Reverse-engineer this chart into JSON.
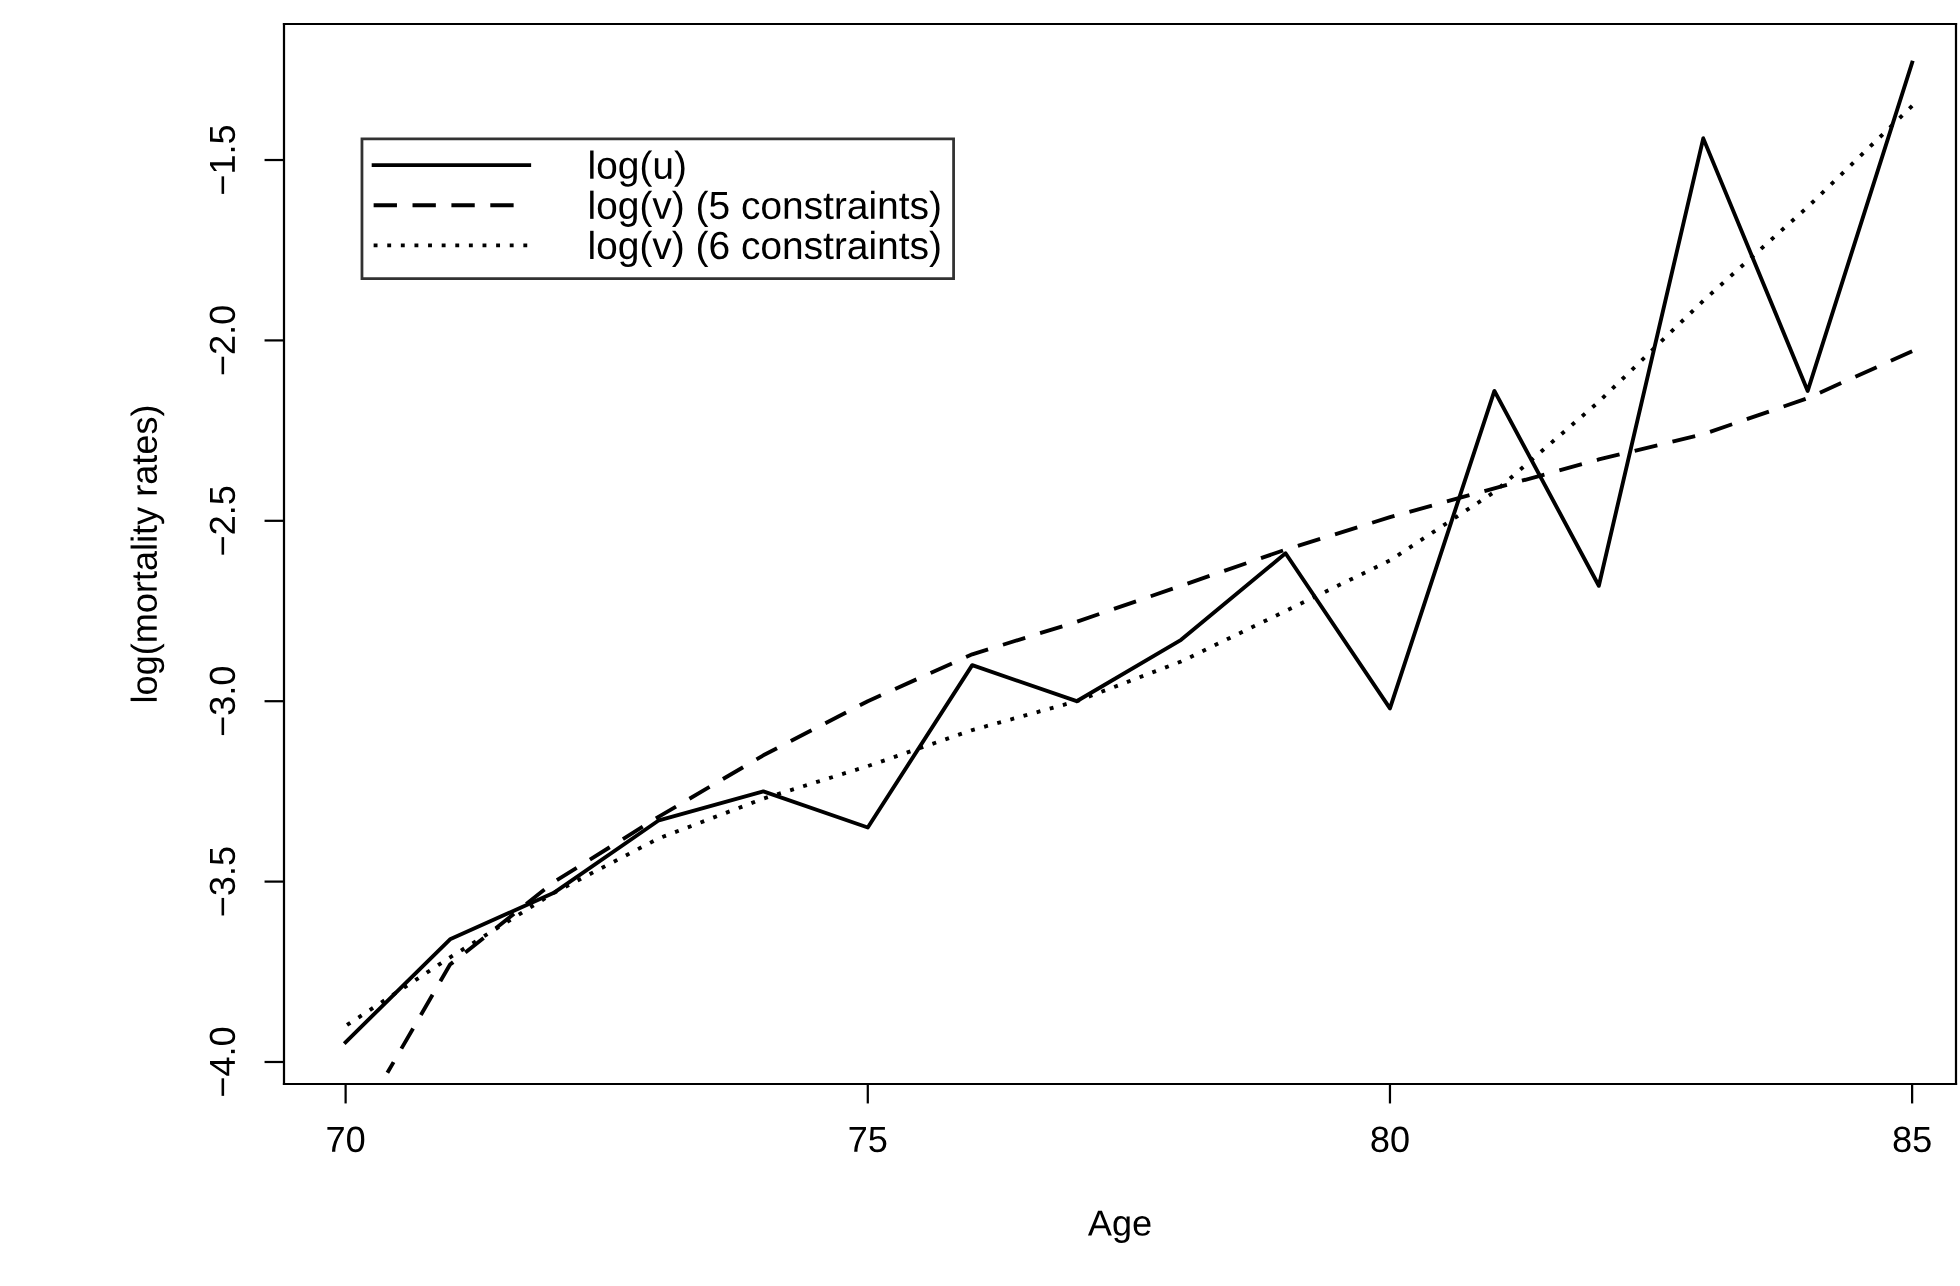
{
  "chart_data": {
    "type": "line",
    "xlabel": "Age",
    "ylabel": "log(mortality rates)",
    "xlim": [
      69.41,
      85.42
    ],
    "ylim": [
      -4.061,
      -1.123
    ],
    "xticks": [
      70,
      75,
      80,
      85
    ],
    "yticks": [
      {
        "value": -4.0,
        "label": "−4.0"
      },
      {
        "value": -3.5,
        "label": "−3.5"
      },
      {
        "value": -3.0,
        "label": "−3.0"
      },
      {
        "value": -2.5,
        "label": "−2.5"
      },
      {
        "value": -2.0,
        "label": "−2.0"
      },
      {
        "value": -1.5,
        "label": "−1.5"
      }
    ],
    "grid": false,
    "legend": "top left",
    "series": [
      {
        "name": "log(u)",
        "color": "#000000",
        "line_style": "solid",
        "x": [
          70,
          71,
          72,
          73,
          74,
          75,
          76,
          77,
          78,
          79,
          80,
          81,
          82,
          83,
          84,
          85
        ],
        "values": [
          -3.945,
          -3.66,
          -3.53,
          -3.33,
          -3.25,
          -3.35,
          -2.9,
          -3.0,
          -2.83,
          -2.59,
          -3.02,
          -2.14,
          -2.68,
          -1.44,
          -2.14,
          -1.23
        ]
      },
      {
        "name": "log(v) (5 constraints)",
        "color": "#000000",
        "line_style": "dashed",
        "x": [
          70.4,
          71,
          72,
          73,
          74,
          75,
          76,
          77,
          78,
          79,
          80,
          81,
          82,
          83,
          84,
          85
        ],
        "values": [
          -4.03,
          -3.73,
          -3.5,
          -3.32,
          -3.15,
          -3.0,
          -2.87,
          -2.78,
          -2.68,
          -2.58,
          -2.49,
          -2.41,
          -2.33,
          -2.26,
          -2.16,
          -2.03
        ]
      },
      {
        "name": "log(v) (6 constraints)",
        "color": "#000000",
        "line_style": "dotted",
        "x": [
          70,
          71,
          72,
          73,
          74,
          75,
          76,
          77,
          78,
          79,
          80,
          81,
          82,
          83,
          84,
          85
        ],
        "values": [
          -3.9,
          -3.71,
          -3.53,
          -3.38,
          -3.27,
          -3.18,
          -3.08,
          -3.0,
          -2.89,
          -2.75,
          -2.61,
          -2.42,
          -2.17,
          -1.89,
          -1.63,
          -1.35
        ]
      }
    ]
  }
}
